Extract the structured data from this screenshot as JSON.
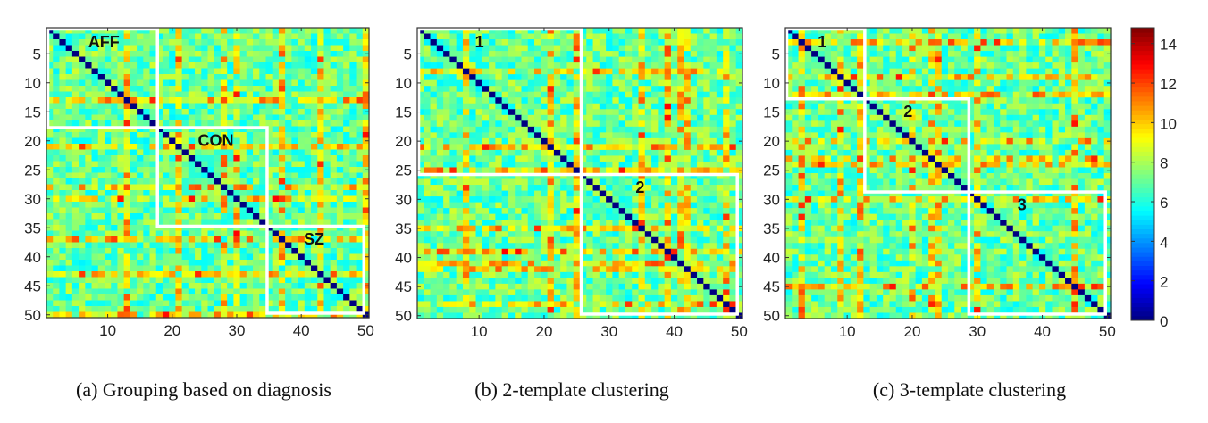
{
  "chart_data": [
    {
      "type": "heatmap",
      "caption": "(a) Grouping based on diagnosis",
      "size": 50,
      "xticks": [
        10,
        20,
        30,
        40,
        50
      ],
      "yticks": [
        5,
        10,
        15,
        20,
        25,
        30,
        35,
        40,
        45,
        50
      ],
      "xlim": [
        0.5,
        50.5
      ],
      "ylim": [
        0.5,
        50.5
      ],
      "diagonal_value": 0,
      "typical_value": 7,
      "clusters": [
        {
          "label": "AFF",
          "start": 1,
          "end": 17
        },
        {
          "label": "CON",
          "start": 18,
          "end": 34
        },
        {
          "label": "SZ",
          "start": 35,
          "end": 49
        }
      ],
      "high_rows": [
        21,
        28,
        37,
        43,
        50
      ],
      "high_cols": [
        13,
        30
      ]
    },
    {
      "type": "heatmap",
      "caption": "(b) 2-template clustering",
      "size": 50,
      "xticks": [
        10,
        20,
        30,
        40,
        50
      ],
      "yticks": [
        5,
        10,
        15,
        20,
        25,
        30,
        35,
        40,
        45,
        50
      ],
      "xlim": [
        0.5,
        50.5
      ],
      "ylim": [
        0.5,
        50.5
      ],
      "diagonal_value": 0,
      "typical_value": 7,
      "clusters": [
        {
          "label": "1",
          "start": 1,
          "end": 25
        },
        {
          "label": "2",
          "start": 26,
          "end": 49
        }
      ],
      "high_rows": [
        35,
        39,
        42,
        48
      ],
      "high_cols": [
        8,
        21,
        25,
        41
      ]
    },
    {
      "type": "heatmap",
      "caption": "(c) 3-template clustering",
      "size": 50,
      "xticks": [
        10,
        20,
        30,
        40,
        50
      ],
      "yticks": [
        5,
        10,
        15,
        20,
        25,
        30,
        35,
        40,
        45,
        50
      ],
      "xlim": [
        0.5,
        50.5
      ],
      "ylim": [
        0.5,
        50.5
      ],
      "diagonal_value": 0,
      "typical_value": 7,
      "clusters": [
        {
          "label": "1",
          "start": 1,
          "end": 12
        },
        {
          "label": "2",
          "start": 13,
          "end": 28
        },
        {
          "label": "3",
          "start": 29,
          "end": 49
        }
      ],
      "high_rows": [
        20,
        23,
        30,
        45
      ],
      "high_cols": [
        3,
        9,
        12,
        24
      ]
    }
  ],
  "colorbar": {
    "colormap": "jet",
    "range": [
      0,
      14.8
    ],
    "ticks": [
      0,
      2,
      4,
      6,
      8,
      10,
      12,
      14
    ]
  },
  "colors": {
    "cluster_outline": "#ffffff",
    "axis": "#333333"
  }
}
